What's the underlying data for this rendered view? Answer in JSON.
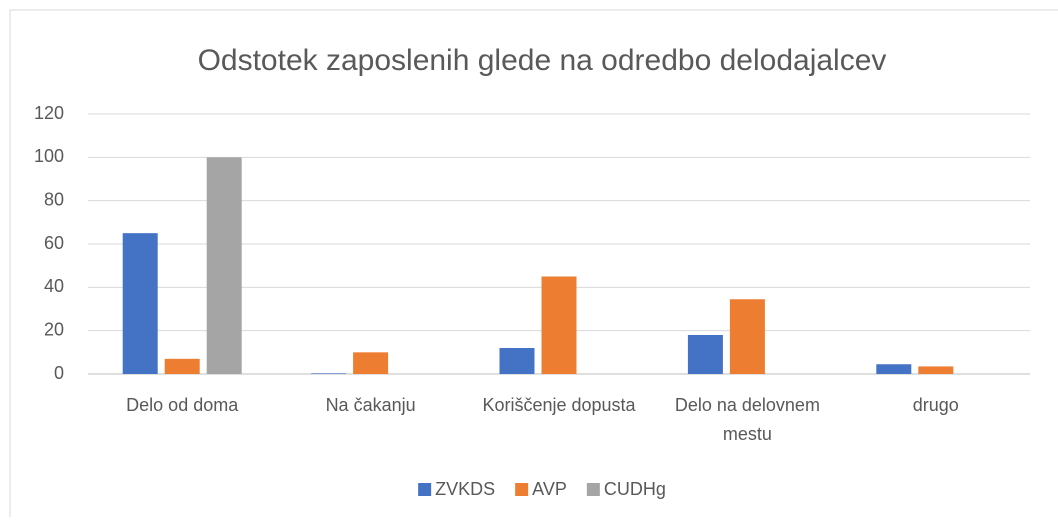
{
  "chart_data": {
    "type": "bar",
    "title": "Odstotek zaposlenih glede na odredbo delodajalcev",
    "categories": [
      "Delo od doma",
      "Na čakanju",
      "Koriščenje dopusta",
      "Delo na delovnem mestu",
      "drugo"
    ],
    "series": [
      {
        "name": "ZVKDS",
        "color": "#4472c4",
        "values": [
          65,
          0.3,
          12,
          18,
          4.5
        ]
      },
      {
        "name": "AVP",
        "color": "#ed7d31",
        "values": [
          7,
          10,
          45,
          34.5,
          3.5
        ]
      },
      {
        "name": "CUDHg",
        "color": "#a5a5a5",
        "values": [
          100,
          0,
          0,
          0,
          0
        ]
      }
    ],
    "ylim": [
      0,
      120
    ],
    "yticks": [
      0,
      20,
      40,
      60,
      80,
      100,
      120
    ],
    "grid": true,
    "legend": "bottom"
  }
}
